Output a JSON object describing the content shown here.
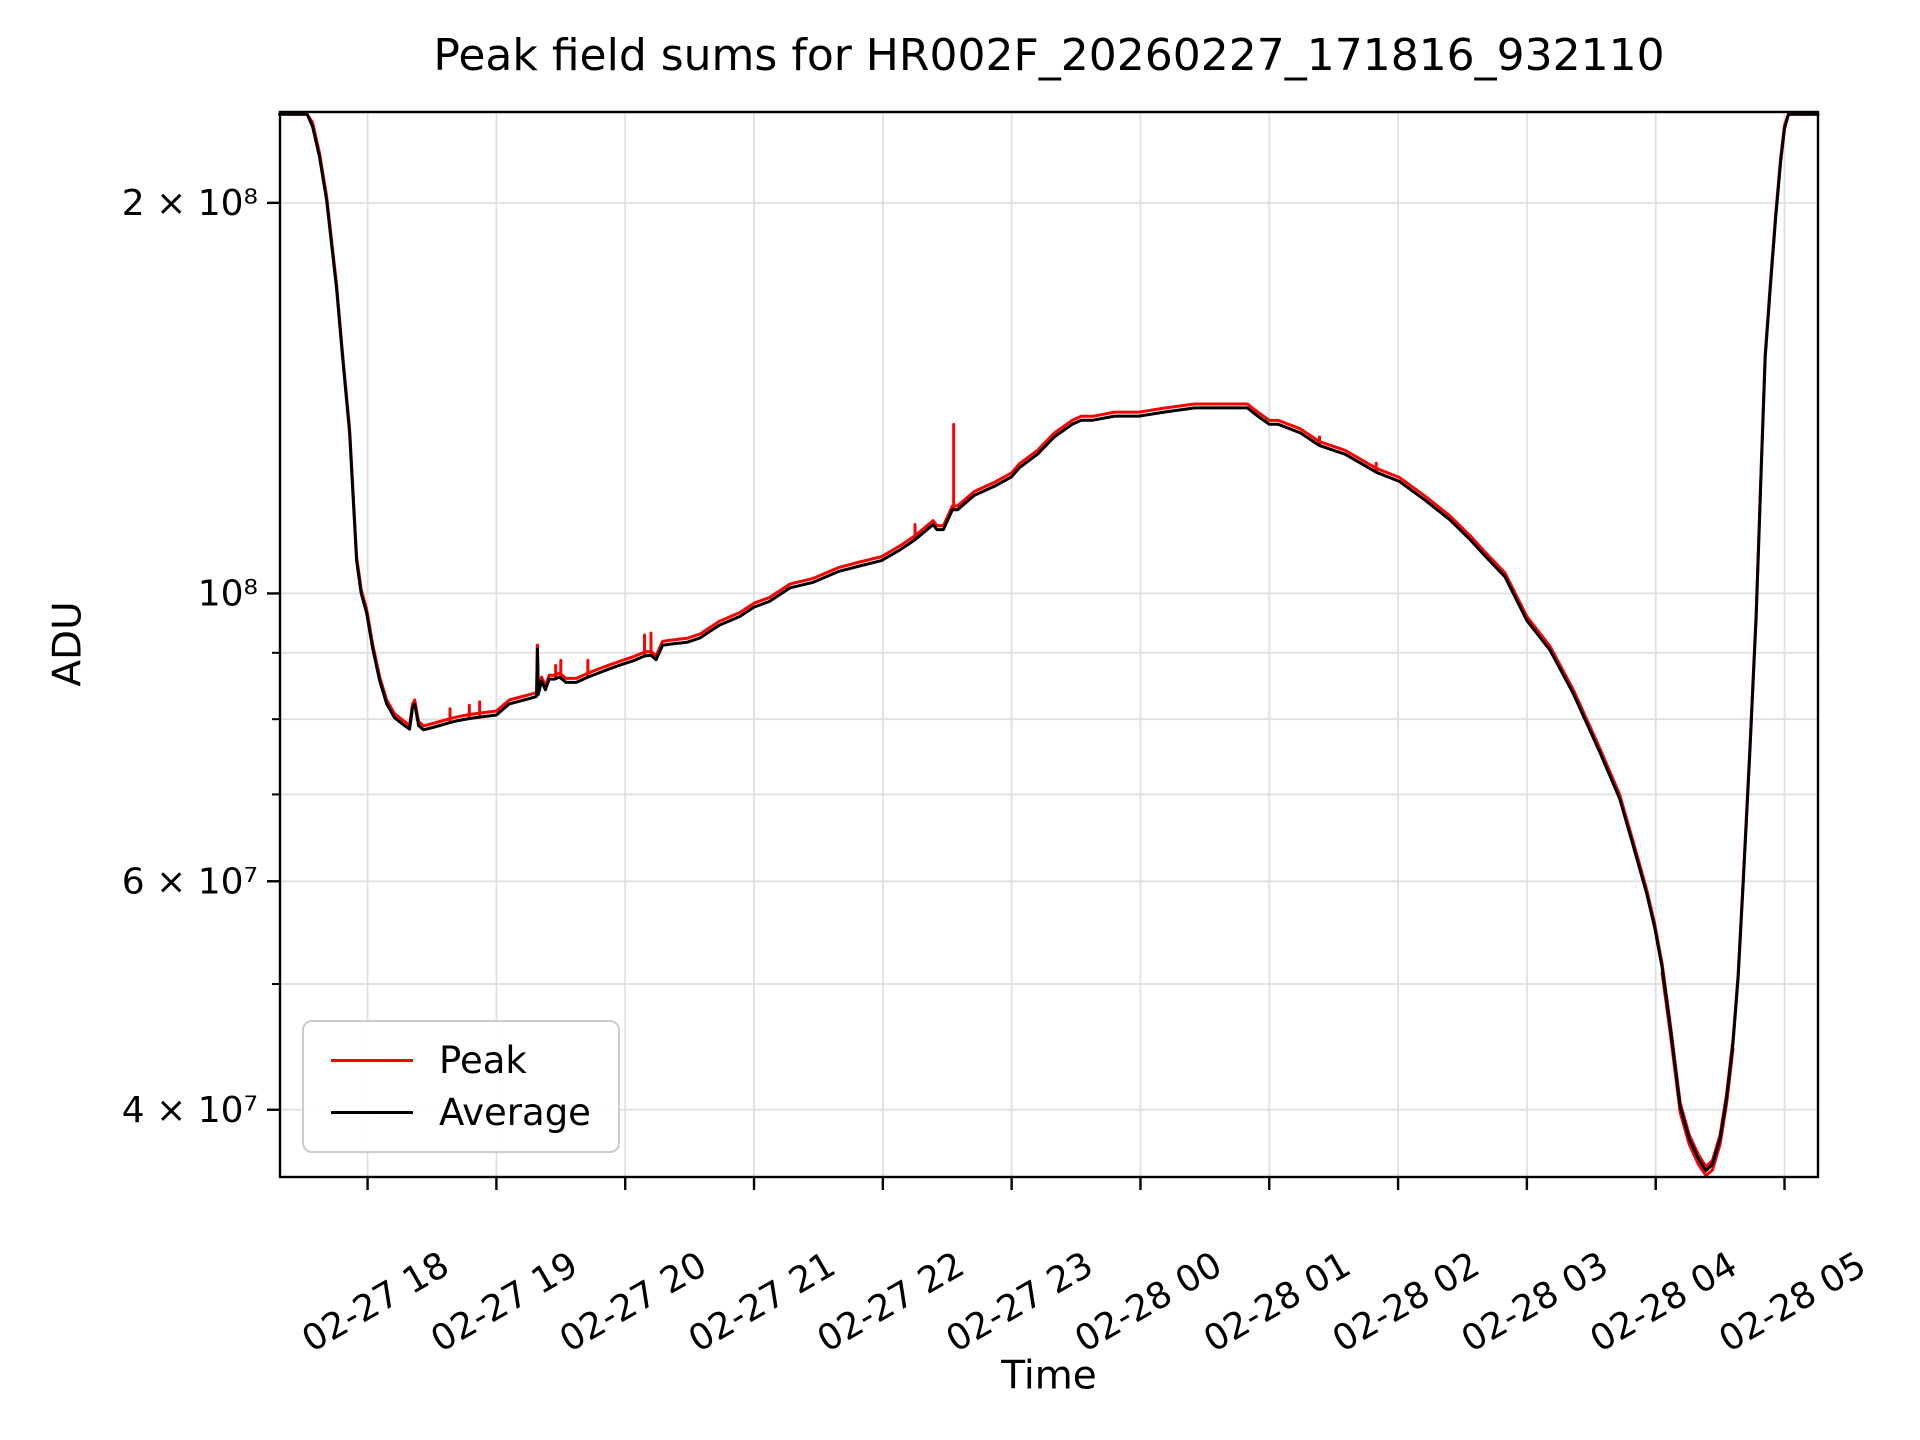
{
  "figure_title": "Peak field sums for HR002F_20260227_171816_932110",
  "axes": {
    "xlabel": "Time",
    "ylabel": "ADU"
  },
  "legend": {
    "position": "lower left",
    "items": [
      {
        "label": "Peak",
        "color": "#ff0000"
      },
      {
        "label": "Average",
        "color": "#000000"
      }
    ]
  },
  "colors": {
    "background": "#ffffff",
    "grid": "#e0e0e0",
    "spine": "#000000",
    "peak": "#ff0000",
    "average": "#000000"
  },
  "chart_data": {
    "type": "line",
    "title": "Peak field sums for HR002F_20260227_171816_932110",
    "xlabel": "Time",
    "ylabel": "ADU",
    "grid": "both",
    "legend_position": "lower left",
    "x_axis": {
      "scale": "time",
      "unit": "hours since 2026-02-27 17:00",
      "range": [
        0.32,
        12.26
      ],
      "ticks": [
        {
          "t": 1,
          "label": "02-27 18"
        },
        {
          "t": 2,
          "label": "02-27 19"
        },
        {
          "t": 3,
          "label": "02-27 20"
        },
        {
          "t": 4,
          "label": "02-27 21"
        },
        {
          "t": 5,
          "label": "02-27 22"
        },
        {
          "t": 6,
          "label": "02-27 23"
        },
        {
          "t": 7,
          "label": "02-28 00"
        },
        {
          "t": 8,
          "label": "02-28 01"
        },
        {
          "t": 9,
          "label": "02-28 02"
        },
        {
          "t": 10,
          "label": "02-28 03"
        },
        {
          "t": 11,
          "label": "02-28 04"
        },
        {
          "t": 12,
          "label": "02-28 05"
        }
      ]
    },
    "y_axis": {
      "scale": "log",
      "unit": "ADU",
      "range": [
        35500000.0,
        235000000.0
      ],
      "ticks": [
        {
          "value": 200000000.0,
          "label": "2 × 10⁸",
          "major": true
        },
        {
          "value": 100000000.0,
          "label": "10⁸",
          "major": true
        },
        {
          "value": 90000000.0,
          "label": "",
          "major": false
        },
        {
          "value": 80000000.0,
          "label": "",
          "major": false
        },
        {
          "value": 70000000.0,
          "label": "",
          "major": false
        },
        {
          "value": 60000000.0,
          "label": "6 × 10⁷",
          "major": true
        },
        {
          "value": 50000000.0,
          "label": "",
          "major": false
        },
        {
          "value": 40000000.0,
          "label": "4 × 10⁷",
          "major": true
        }
      ]
    },
    "series": [
      {
        "name": "Peak",
        "color": "#ff0000",
        "style": "fringe_above_average_plus_spikes",
        "fringe_ratio": 1.007,
        "fringe_below_range": [
          11.02,
          11.62
        ],
        "fringe_below_ratio": 0.99,
        "spikes": [
          [
            1.64,
            81500000.0
          ],
          [
            1.79,
            82000000.0
          ],
          [
            1.87,
            82500000.0
          ],
          [
            2.318,
            91200000.0
          ],
          [
            2.46,
            88000000.0
          ],
          [
            2.5,
            88800000.0
          ],
          [
            2.71,
            88800000.0
          ],
          [
            3.15,
            92900000.0
          ],
          [
            3.2,
            93200000.0
          ],
          [
            5.25,
            113000000.0
          ],
          [
            5.55,
            135000000.0
          ],
          [
            8.39,
            132000000.0
          ],
          [
            8.83,
            126000000.0
          ]
        ]
      },
      {
        "name": "Average",
        "color": "#000000",
        "points": [
          [
            0.317,
            235000000.0
          ],
          [
            0.53,
            235000000.0
          ],
          [
            0.573,
            229000000.0
          ],
          [
            0.627,
            217000000.0
          ],
          [
            0.682,
            201000000.0
          ],
          [
            0.759,
            172000000.0
          ],
          [
            0.806,
            152000000.0
          ],
          [
            0.86,
            133000000.0
          ],
          [
            0.915,
            106000000.0
          ],
          [
            0.95,
            100000000.0
          ],
          [
            0.992,
            96600000.0
          ],
          [
            1.04,
            90700000.0
          ],
          [
            1.093,
            85700000.0
          ],
          [
            1.148,
            82200000.0
          ],
          [
            1.21,
            80200000.0
          ],
          [
            1.272,
            79300000.0
          ],
          [
            1.326,
            78600000.0
          ],
          [
            1.349,
            81600000.0
          ],
          [
            1.366,
            82200000.0
          ],
          [
            1.396,
            79100000.0
          ],
          [
            1.435,
            78500000.0
          ],
          [
            1.52,
            78900000.0
          ],
          [
            1.637,
            79500000.0
          ],
          [
            1.7,
            79800000.0
          ],
          [
            1.792,
            80100000.0
          ],
          [
            1.87,
            80300000.0
          ],
          [
            2.0,
            80600000.0
          ],
          [
            2.1,
            82200000.0
          ],
          [
            2.26,
            83000000.0
          ],
          [
            2.312,
            83300000.0
          ],
          [
            2.318,
            90600000.0
          ],
          [
            2.325,
            83600000.0
          ],
          [
            2.35,
            85600000.0
          ],
          [
            2.38,
            84300000.0
          ],
          [
            2.41,
            85900000.0
          ],
          [
            2.45,
            85900000.0
          ],
          [
            2.49,
            86200000.0
          ],
          [
            2.54,
            85400000.0
          ],
          [
            2.62,
            85400000.0
          ],
          [
            2.71,
            86200000.0
          ],
          [
            2.8,
            86900000.0
          ],
          [
            2.88,
            87500000.0
          ],
          [
            2.98,
            88200000.0
          ],
          [
            3.07,
            88800000.0
          ],
          [
            3.15,
            89500000.0
          ],
          [
            3.2,
            89600000.0
          ],
          [
            3.24,
            88900000.0
          ],
          [
            3.29,
            91200000.0
          ],
          [
            3.35,
            91400000.0
          ],
          [
            3.48,
            91700000.0
          ],
          [
            3.58,
            92400000.0
          ],
          [
            3.73,
            94500000.0
          ],
          [
            3.89,
            96000000.0
          ],
          [
            4.0,
            97600000.0
          ],
          [
            4.12,
            98600000.0
          ],
          [
            4.28,
            101000000.0
          ],
          [
            4.46,
            102000000.0
          ],
          [
            4.66,
            104000000.0
          ],
          [
            4.82,
            105000000.0
          ],
          [
            4.99,
            106000000.0
          ],
          [
            5.13,
            108000000.0
          ],
          [
            5.25,
            110000000.0
          ],
          [
            5.39,
            113000000.0
          ],
          [
            5.42,
            112000000.0
          ],
          [
            5.47,
            112000000.0
          ],
          [
            5.54,
            116000000.0
          ],
          [
            5.58,
            116000000.0
          ],
          [
            5.71,
            119000000.0
          ],
          [
            5.87,
            121000000.0
          ],
          [
            6.0,
            123000000.0
          ],
          [
            6.06,
            125000000.0
          ],
          [
            6.2,
            128000000.0
          ],
          [
            6.33,
            132000000.0
          ],
          [
            6.47,
            135000000.0
          ],
          [
            6.54,
            136000000.0
          ],
          [
            6.63,
            136000000.0
          ],
          [
            6.8,
            137000000.0
          ],
          [
            6.99,
            137000000.0
          ],
          [
            7.19,
            138000000.0
          ],
          [
            7.42,
            139000000.0
          ],
          [
            7.69,
            139000000.0
          ],
          [
            7.83,
            139000000.0
          ],
          [
            7.91,
            137000000.0
          ],
          [
            8.0,
            135000000.0
          ],
          [
            8.07,
            135000000.0
          ],
          [
            8.24,
            133000000.0
          ],
          [
            8.39,
            130000000.0
          ],
          [
            8.59,
            128000000.0
          ],
          [
            8.83,
            124000000.0
          ],
          [
            9.01,
            122000000.0
          ],
          [
            9.21,
            118000000.0
          ],
          [
            9.4,
            114000000.0
          ],
          [
            9.56,
            110000000.0
          ],
          [
            9.67,
            107000000.0
          ],
          [
            9.83,
            103000000.0
          ],
          [
            10.0,
            95300000.0
          ],
          [
            10.18,
            90400000.0
          ],
          [
            10.36,
            83700000.0
          ],
          [
            10.57,
            75300000.0
          ],
          [
            10.72,
            69500000.0
          ],
          [
            10.82,
            64200000.0
          ],
          [
            10.93,
            58700000.0
          ],
          [
            10.99,
            55400000.0
          ],
          [
            11.05,
            51500000.0
          ],
          [
            11.11,
            46500000.0
          ],
          [
            11.19,
            40200000.0
          ],
          [
            11.26,
            38000000.0
          ],
          [
            11.33,
            36700000.0
          ],
          [
            11.39,
            35900000.0
          ],
          [
            11.44,
            36300000.0
          ],
          [
            11.5,
            38000000.0
          ],
          [
            11.55,
            40800000.0
          ],
          [
            11.6,
            45000000.0
          ],
          [
            11.64,
            50500000.0
          ],
          [
            11.68,
            60000000.0
          ],
          [
            11.73,
            75000000.0
          ],
          [
            11.78,
            96000000.0
          ],
          [
            11.82,
            125000000.0
          ],
          [
            11.85,
            152000000.0
          ],
          [
            11.89,
            172000000.0
          ],
          [
            11.93,
            194000000.0
          ],
          [
            11.97,
            215000000.0
          ],
          [
            12.0,
            228000000.0
          ],
          [
            12.03,
            234000000.0
          ],
          [
            12.06,
            235000000.0
          ],
          [
            12.26,
            235000000.0
          ]
        ]
      }
    ]
  }
}
